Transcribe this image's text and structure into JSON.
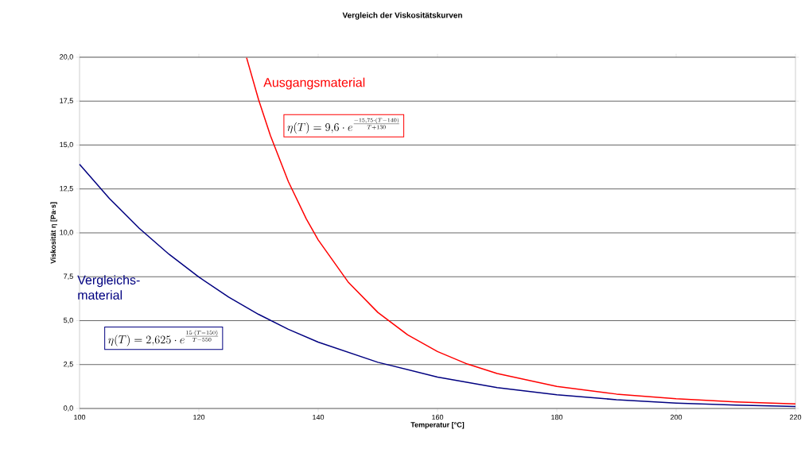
{
  "chart_data": {
    "type": "line",
    "title": "Vergleich der Viskositätskurven",
    "xlabel": "Temperatur [°C]",
    "ylabel": "Viskosität η [Pa·s]",
    "xlim": [
      100,
      220
    ],
    "ylim": [
      0,
      20
    ],
    "xticks": [
      100,
      120,
      140,
      160,
      180,
      200,
      220
    ],
    "yticks": [
      {
        "value": 0,
        "label": "0,0"
      },
      {
        "value": 2.5,
        "label": "2,5"
      },
      {
        "value": 5,
        "label": "5,0"
      },
      {
        "value": 7.5,
        "label": "7,5"
      },
      {
        "value": 10,
        "label": "10,0"
      },
      {
        "value": 12.5,
        "label": "12,5"
      },
      {
        "value": 15,
        "label": "15,0"
      },
      {
        "value": 17.5,
        "label": "17,5"
      },
      {
        "value": 20,
        "label": "20,0"
      }
    ],
    "grid": "y",
    "marker": "none",
    "line_style": "solid",
    "series": [
      {
        "name": "Ausgangsmaterial",
        "color": "#ff0000",
        "x": [
          128,
          130,
          132,
          135,
          138,
          140,
          145,
          150,
          155,
          160,
          165,
          170,
          180,
          190,
          200,
          210,
          220
        ],
        "values": [
          19.97,
          17.59,
          15.53,
          12.92,
          10.8,
          9.6,
          7.21,
          5.47,
          4.19,
          3.24,
          2.53,
          1.99,
          1.26,
          0.82,
          0.55,
          0.37,
          0.26
        ]
      },
      {
        "name": "Vergleichs-material",
        "color": "#000080",
        "x": [
          100,
          105,
          110,
          115,
          120,
          125,
          130,
          135,
          140,
          150,
          160,
          170,
          180,
          190,
          200,
          210,
          220
        ],
        "values": [
          13.9,
          11.96,
          10.26,
          8.78,
          7.48,
          6.34,
          5.36,
          4.51,
          3.78,
          2.63,
          1.79,
          1.19,
          0.78,
          0.5,
          0.31,
          0.19,
          0.11
        ]
      }
    ],
    "annotations": [
      "\\eta(T) = 9{,}6 \\cdot e^{\\frac{-15{,}75\\cdot(T-140)}{T+130}}",
      "\\eta(T) = 2{,}625 \\cdot e^{\\frac{15\\cdot(T-150)}{T-550}}"
    ]
  }
}
